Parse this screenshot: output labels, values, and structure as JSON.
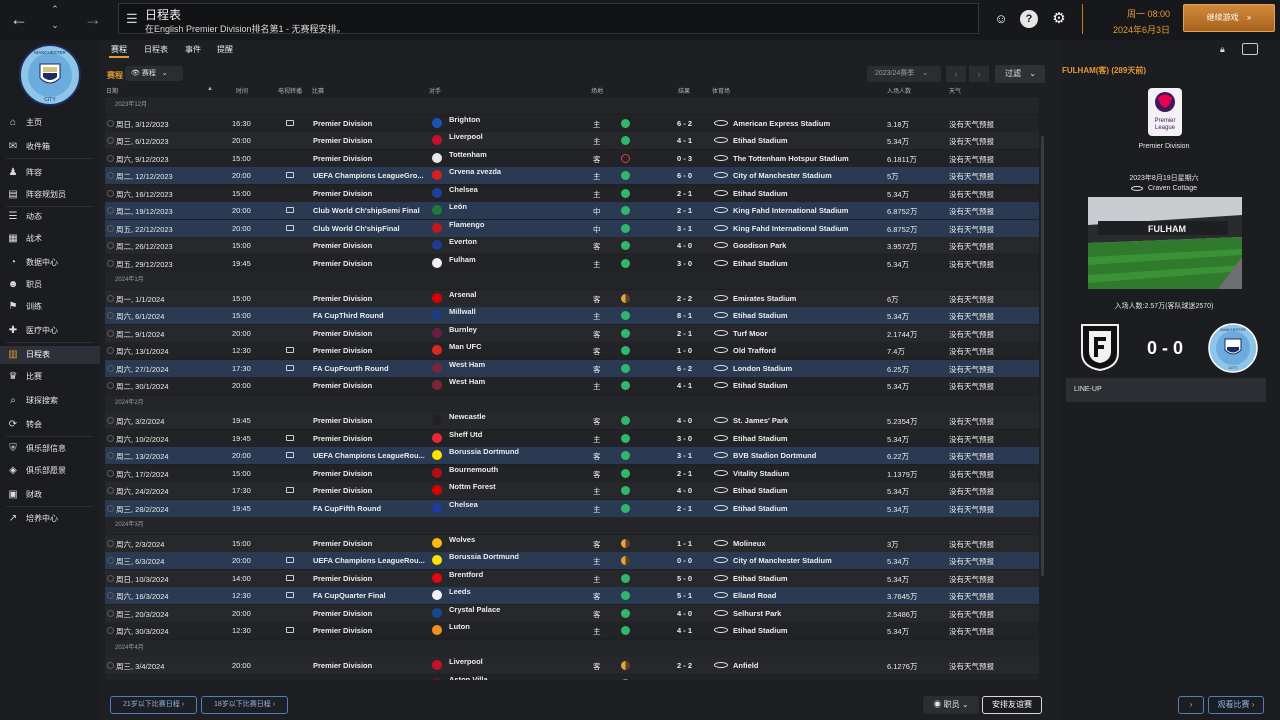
{
  "header": {
    "title": "日程表",
    "subtitle": "在English Premier Division排名第1 - 无赛程安排。",
    "time": "周一 08:00",
    "date": "2024年6月3日",
    "continue_label": "继续游戏"
  },
  "sidebar": {
    "items": [
      {
        "label": "主页",
        "icon": "home-icon"
      },
      {
        "label": "收件箱",
        "icon": "inbox-icon"
      },
      {
        "label": "阵容",
        "icon": "shirt-icon"
      },
      {
        "label": "阵容规划员",
        "icon": "planner-icon"
      },
      {
        "label": "动态",
        "icon": "news-icon"
      },
      {
        "label": "战术",
        "icon": "tactics-icon"
      },
      {
        "label": "数据中心",
        "icon": "data-icon"
      },
      {
        "label": "职员",
        "icon": "staff-icon"
      },
      {
        "label": "训练",
        "icon": "training-icon"
      },
      {
        "label": "医疗中心",
        "icon": "medical-icon"
      },
      {
        "label": "日程表",
        "icon": "calendar-icon"
      },
      {
        "label": "比赛",
        "icon": "trophy-icon"
      },
      {
        "label": "球探搜索",
        "icon": "scout-icon"
      },
      {
        "label": "转会",
        "icon": "transfer-icon"
      },
      {
        "label": "俱乐部信息",
        "icon": "shield-icon"
      },
      {
        "label": "俱乐部愿景",
        "icon": "vision-icon"
      },
      {
        "label": "财政",
        "icon": "finance-icon"
      },
      {
        "label": "培养中心",
        "icon": "development-icon"
      }
    ]
  },
  "tabs": [
    "赛程",
    "日程表",
    "事件",
    "提醒"
  ],
  "section_label": "赛程",
  "filter_select": "赛程",
  "season": "2023/24赛季",
  "filter_label": "过滤",
  "columns": {
    "date": "日期",
    "time": "时间",
    "tv": "电视转播",
    "comp": "比赛",
    "opp": "对手",
    "venue": "场地",
    "result": "结果",
    "stadium": "体育场",
    "att": "入场人数",
    "weather": "天气"
  },
  "groups": [
    {
      "label": "2023年12月",
      "rows": [
        {
          "date": "周日, 3/12/2023",
          "time": "16:30",
          "tv": true,
          "comp": "Premier Division",
          "opp": "Brighton",
          "badge": "#1a56b0",
          "venue": "主",
          "res": "win",
          "score": "6 - 2",
          "stadium": "American Express Stadium",
          "att": "3.18万",
          "weather": "没有天气预报",
          "hl": false
        },
        {
          "date": "周三, 6/12/2023",
          "time": "20:00",
          "tv": false,
          "comp": "Premier Division",
          "opp": "Liverpool",
          "badge": "#c8102e",
          "venue": "主",
          "res": "win",
          "score": "4 - 1",
          "stadium": "Etihad Stadium",
          "att": "5.34万",
          "weather": "没有天气预报",
          "hl": false
        },
        {
          "date": "周六, 9/12/2023",
          "time": "15:00",
          "tv": false,
          "comp": "Premier Division",
          "opp": "Tottenham",
          "badge": "#e8e8e8",
          "venue": "客",
          "res": "loss",
          "score": "0 - 3",
          "stadium": "The Tottenham Hotspur Stadium",
          "att": "6.1811万",
          "weather": "没有天气预报",
          "hl": false
        },
        {
          "date": "周二, 12/12/2023",
          "time": "20:00",
          "tv": true,
          "comp": "UEFA Champions LeagueGro...",
          "opp": "Crvena zvezda",
          "badge": "#d81e1e",
          "venue": "主",
          "res": "win",
          "score": "6 - 0",
          "stadium": "City of Manchester Stadium",
          "att": "5万",
          "weather": "没有天气预报",
          "hl": true
        },
        {
          "date": "周六, 16/12/2023",
          "time": "15:00",
          "tv": false,
          "comp": "Premier Division",
          "opp": "Chelsea",
          "badge": "#1c3f9e",
          "venue": "主",
          "res": "win",
          "score": "2 - 1",
          "stadium": "Etihad Stadium",
          "att": "5.34万",
          "weather": "没有天气预报",
          "hl": false
        },
        {
          "date": "周二, 19/12/2023",
          "time": "20:00",
          "tv": true,
          "comp": "Club World Ch'shipSemi Final",
          "opp": "León",
          "badge": "#1f7a3a",
          "venue": "中",
          "res": "win",
          "score": "2 - 1",
          "stadium": "King Fahd International Stadium",
          "att": "6.8752万",
          "weather": "没有天气预报",
          "hl": true
        },
        {
          "date": "周五, 22/12/2023",
          "time": "20:00",
          "tv": true,
          "comp": "Club World Ch'shipFinal",
          "opp": "Flamengo",
          "badge": "#c4161c",
          "venue": "中",
          "res": "win",
          "score": "3 - 1",
          "stadium": "King Fahd International Stadium",
          "att": "6.8752万",
          "weather": "没有天气预报",
          "hl": true
        },
        {
          "date": "周二, 26/12/2023",
          "time": "15:00",
          "tv": false,
          "comp": "Premier Division",
          "opp": "Everton",
          "badge": "#1d3b8f",
          "venue": "客",
          "res": "win",
          "score": "4 - 0",
          "stadium": "Goodison Park",
          "att": "3.9572万",
          "weather": "没有天气预报",
          "hl": false
        },
        {
          "date": "周五, 29/12/2023",
          "time": "19:45",
          "tv": false,
          "comp": "Premier Division",
          "opp": "Fulham",
          "badge": "#f2f2f2",
          "venue": "主",
          "res": "win",
          "score": "3 - 0",
          "stadium": "Etihad Stadium",
          "att": "5.34万",
          "weather": "没有天气预报",
          "hl": false
        }
      ]
    },
    {
      "label": "2024年1月",
      "rows": [
        {
          "date": "周一, 1/1/2024",
          "time": "15:00",
          "tv": false,
          "comp": "Premier Division",
          "opp": "Arsenal",
          "badge": "#db0007",
          "venue": "客",
          "res": "draw",
          "score": "2 - 2",
          "stadium": "Emirates Stadium",
          "att": "6万",
          "weather": "没有天气预报",
          "hl": false
        },
        {
          "date": "周六, 6/1/2024",
          "time": "15:00",
          "tv": false,
          "comp": "FA CupThird Round",
          "opp": "Millwall",
          "badge": "#1a3d86",
          "venue": "主",
          "res": "win",
          "score": "8 - 1",
          "stadium": "Etihad Stadium",
          "att": "5.34万",
          "weather": "没有天气预报",
          "hl": true
        },
        {
          "date": "周二, 9/1/2024",
          "time": "20:00",
          "tv": false,
          "comp": "Premier Division",
          "opp": "Burnley",
          "badge": "#6c1d45",
          "venue": "客",
          "res": "win",
          "score": "2 - 1",
          "stadium": "Turf Moor",
          "att": "2.1744万",
          "weather": "没有天气预报",
          "hl": false
        },
        {
          "date": "周六, 13/1/2024",
          "time": "12:30",
          "tv": true,
          "comp": "Premier Division",
          "opp": "Man UFC",
          "badge": "#da291c",
          "venue": "客",
          "res": "win",
          "score": "1 - 0",
          "stadium": "Old Trafford",
          "att": "7.4万",
          "weather": "没有天气预报",
          "hl": false
        },
        {
          "date": "周六, 27/1/2024",
          "time": "17:30",
          "tv": true,
          "comp": "FA CupFourth Round",
          "opp": "West Ham",
          "badge": "#7a263a",
          "venue": "客",
          "res": "win",
          "score": "6 - 2",
          "stadium": "London Stadium",
          "att": "6.25万",
          "weather": "没有天气预报",
          "hl": true
        },
        {
          "date": "周二, 30/1/2024",
          "time": "20:00",
          "tv": false,
          "comp": "Premier Division",
          "opp": "West Ham",
          "badge": "#7a263a",
          "venue": "主",
          "res": "win",
          "score": "4 - 1",
          "stadium": "Etihad Stadium",
          "att": "5.34万",
          "weather": "没有天气预报",
          "hl": false
        }
      ]
    },
    {
      "label": "2024年2月",
      "rows": [
        {
          "date": "周六, 3/2/2024",
          "time": "19:45",
          "tv": false,
          "comp": "Premier Division",
          "opp": "Newcastle",
          "badge": "#241f20",
          "venue": "客",
          "res": "win",
          "score": "4 - 0",
          "stadium": "St. James' Park",
          "att": "5.2354万",
          "weather": "没有天气预报",
          "hl": false
        },
        {
          "date": "周六, 10/2/2024",
          "time": "19:45",
          "tv": true,
          "comp": "Premier Division",
          "opp": "Sheff Utd",
          "badge": "#ee2737",
          "venue": "主",
          "res": "win",
          "score": "3 - 0",
          "stadium": "Etihad Stadium",
          "att": "5.34万",
          "weather": "没有天气预报",
          "hl": false
        },
        {
          "date": "周二, 13/2/2024",
          "time": "20:00",
          "tv": true,
          "comp": "UEFA Champions LeagueRou...",
          "opp": "Borussia Dortmund",
          "badge": "#fde100",
          "venue": "客",
          "res": "win",
          "score": "3 - 1",
          "stadium": "BVB Stadion Dortmund",
          "att": "6.22万",
          "weather": "没有天气预报",
          "hl": true
        },
        {
          "date": "周六, 17/2/2024",
          "time": "15:00",
          "tv": false,
          "comp": "Premier Division",
          "opp": "Bournemouth",
          "badge": "#b50e12",
          "venue": "客",
          "res": "win",
          "score": "2 - 1",
          "stadium": "Vitality Stadium",
          "att": "1.1379万",
          "weather": "没有天气预报",
          "hl": false
        },
        {
          "date": "周六, 24/2/2024",
          "time": "17:30",
          "tv": true,
          "comp": "Premier Division",
          "opp": "Nottm Forest",
          "badge": "#dd0000",
          "venue": "主",
          "res": "win",
          "score": "4 - 0",
          "stadium": "Etihad Stadium",
          "att": "5.34万",
          "weather": "没有天气预报",
          "hl": false
        },
        {
          "date": "周三, 28/2/2024",
          "time": "19:45",
          "tv": false,
          "comp": "FA CupFifth Round",
          "opp": "Chelsea",
          "badge": "#1c3f9e",
          "venue": "主",
          "res": "win",
          "score": "2 - 1",
          "stadium": "Etihad Stadium",
          "att": "5.34万",
          "weather": "没有天气预报",
          "hl": true
        }
      ]
    },
    {
      "label": "2024年3月",
      "rows": [
        {
          "date": "周六, 2/3/2024",
          "time": "15:00",
          "tv": false,
          "comp": "Premier Division",
          "opp": "Wolves",
          "badge": "#fdb913",
          "venue": "客",
          "res": "draw",
          "score": "1 - 1",
          "stadium": "Molineux",
          "att": "3万",
          "weather": "没有天气预报",
          "hl": false
        },
        {
          "date": "周三, 6/3/2024",
          "time": "20:00",
          "tv": true,
          "comp": "UEFA Champions LeagueRou...",
          "opp": "Borussia Dortmund",
          "badge": "#fde100",
          "venue": "主",
          "res": "draw",
          "score": "0 - 0",
          "stadium": "City of Manchester Stadium",
          "att": "5.34万",
          "weather": "没有天气预报",
          "hl": true
        },
        {
          "date": "周日, 10/3/2024",
          "time": "14:00",
          "tv": true,
          "comp": "Premier Division",
          "opp": "Brentford",
          "badge": "#e30613",
          "venue": "主",
          "res": "win",
          "score": "5 - 0",
          "stadium": "Etihad Stadium",
          "att": "5.34万",
          "weather": "没有天气预报",
          "hl": false
        },
        {
          "date": "周六, 16/3/2024",
          "time": "12:30",
          "tv": true,
          "comp": "FA CupQuarter Final",
          "opp": "Leeds",
          "badge": "#f2f2f2",
          "venue": "客",
          "res": "win",
          "score": "5 - 1",
          "stadium": "Elland Road",
          "att": "3.7645万",
          "weather": "没有天气预报",
          "hl": true
        },
        {
          "date": "周三, 20/3/2024",
          "time": "20:00",
          "tv": false,
          "comp": "Premier Division",
          "opp": "Crystal Palace",
          "badge": "#1b458f",
          "venue": "客",
          "res": "win",
          "score": "4 - 0",
          "stadium": "Selhurst Park",
          "att": "2.5486万",
          "weather": "没有天气预报",
          "hl": false
        },
        {
          "date": "周六, 30/3/2024",
          "time": "12:30",
          "tv": true,
          "comp": "Premier Division",
          "opp": "Luton",
          "badge": "#f78f1e",
          "venue": "主",
          "res": "win",
          "score": "4 - 1",
          "stadium": "Etihad Stadium",
          "att": "5.34万",
          "weather": "没有天气预报",
          "hl": false
        }
      ]
    },
    {
      "label": "2024年4月",
      "rows": [
        {
          "date": "周三, 3/4/2024",
          "time": "20:00",
          "tv": false,
          "comp": "Premier Division",
          "opp": "Liverpool",
          "badge": "#c8102e",
          "venue": "客",
          "res": "draw",
          "score": "2 - 2",
          "stadium": "Anfield",
          "att": "6.1276万",
          "weather": "没有天气预报",
          "hl": false
        },
        {
          "date": "",
          "time": "",
          "tv": false,
          "comp": "",
          "opp": "Aston Villa",
          "badge": "#670e36",
          "venue": "",
          "res": "win",
          "score": "",
          "stadium": "",
          "att": "",
          "weather": "",
          "hl": false
        }
      ]
    }
  ],
  "bottom": {
    "u21": "21岁以下比赛日程",
    "u18": "18岁以下比赛日程",
    "staff": "职员",
    "friendly": "安排友谊赛"
  },
  "right_panel": {
    "title": "FULHAM(客) (289天前)",
    "pl_logo_text_1": "Premier",
    "pl_logo_text_2": "League",
    "competition": "Premier Division",
    "date": "2023年8月19日星期六",
    "venue": "Craven Cottage",
    "stadium_banner": "FULHAM",
    "attendance": "入场人数:2.57万(客队球迷2570)",
    "score": "0 - 0",
    "away_crest_text": "MANCHESTER",
    "away_crest_city": "CITY",
    "lineup": "LINE-UP",
    "watch": "观看比赛",
    "next": "›"
  },
  "club_crest": {
    "top": "MANCHESTER",
    "bottom": "CITY"
  },
  "colors": {
    "accent": "#e29a35",
    "win": "#2fb86b",
    "loss": "#e33a3a",
    "highlight_row": "#2a3a52"
  }
}
